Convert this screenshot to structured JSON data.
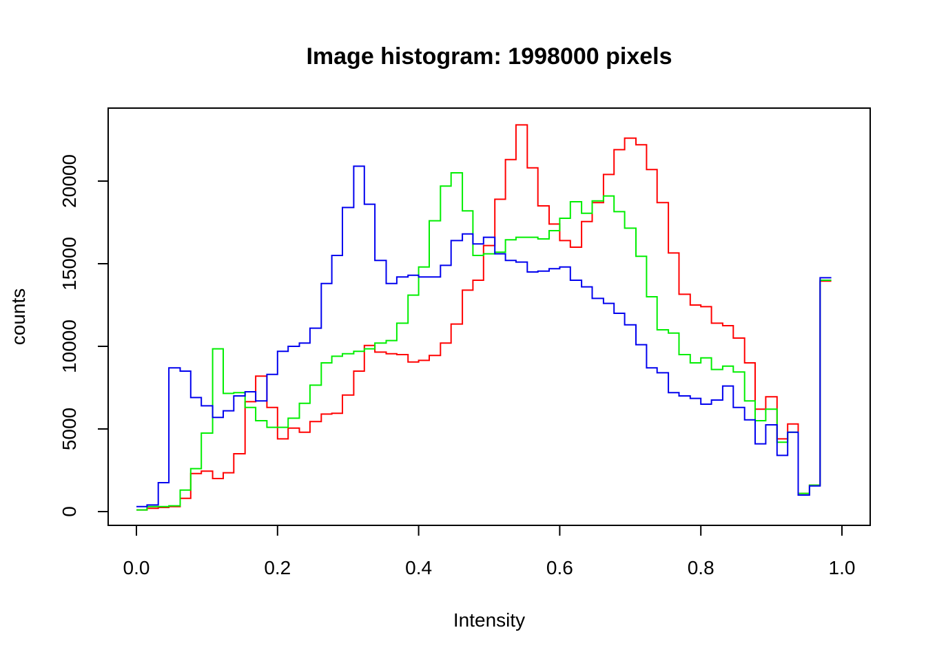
{
  "chart_data": {
    "type": "line",
    "title": "Image histogram: 1998000 pixels",
    "xlabel": "Intensity",
    "ylabel": "counts",
    "xlim": [
      0,
      1
    ],
    "ylim": [
      0,
      23500
    ],
    "grid": false,
    "legend": "none",
    "step": true,
    "x_ticks": [
      {
        "value": 0.0,
        "label": "0.0"
      },
      {
        "value": 0.2,
        "label": "0.2"
      },
      {
        "value": 0.4,
        "label": "0.4"
      },
      {
        "value": 0.6,
        "label": "0.6"
      },
      {
        "value": 0.8,
        "label": "0.8"
      },
      {
        "value": 1.0,
        "label": "1.0"
      }
    ],
    "y_ticks": [
      {
        "value": 0,
        "label": "0"
      },
      {
        "value": 5000,
        "label": "5000"
      },
      {
        "value": 10000,
        "label": "10000"
      },
      {
        "value": 15000,
        "label": "15000"
      },
      {
        "value": 20000,
        "label": "20000"
      }
    ],
    "bin_edges": [
      0,
      0.015,
      0.031,
      0.046,
      0.062,
      0.077,
      0.092,
      0.108,
      0.123,
      0.138,
      0.154,
      0.169,
      0.185,
      0.2,
      0.215,
      0.231,
      0.246,
      0.262,
      0.277,
      0.292,
      0.308,
      0.323,
      0.338,
      0.354,
      0.369,
      0.385,
      0.4,
      0.415,
      0.431,
      0.446,
      0.462,
      0.477,
      0.492,
      0.508,
      0.523,
      0.538,
      0.554,
      0.569,
      0.585,
      0.6,
      0.615,
      0.631,
      0.646,
      0.662,
      0.677,
      0.692,
      0.708,
      0.723,
      0.738,
      0.754,
      0.769,
      0.785,
      0.8,
      0.815,
      0.831,
      0.846,
      0.862,
      0.877,
      0.892,
      0.908,
      0.923,
      0.938,
      0.954,
      0.969,
      0.985,
      1.0
    ],
    "series": [
      {
        "color": "#ff0000",
        "values": [
          100,
          200,
          250,
          300,
          800,
          2300,
          2450,
          2000,
          2350,
          3500,
          6650,
          8200,
          6300,
          4400,
          5050,
          4800,
          5450,
          5900,
          5950,
          7050,
          8500,
          10050,
          9650,
          9550,
          9500,
          9050,
          9150,
          9450,
          10200,
          11350,
          13400,
          14000,
          16100,
          18900,
          21300,
          23400,
          20800,
          18500,
          17400,
          16400,
          16000,
          17550,
          18700,
          20400,
          21900,
          22600,
          22200,
          20700,
          18700,
          15650,
          13150,
          12500,
          12400,
          11400,
          11250,
          10500,
          9000,
          6200,
          6950,
          4400,
          5300,
          1100,
          1600,
          13950
        ]
      },
      {
        "color": "#00ee00",
        "values": [
          100,
          300,
          300,
          350,
          1300,
          2600,
          4750,
          9850,
          7150,
          7200,
          6300,
          5500,
          5100,
          5100,
          5650,
          6550,
          7650,
          9000,
          9400,
          9550,
          9700,
          9850,
          10200,
          10350,
          11400,
          13100,
          14800,
          17600,
          19700,
          20500,
          18200,
          15500,
          15600,
          15700,
          16450,
          16600,
          16600,
          16500,
          17000,
          17750,
          18750,
          18050,
          18800,
          19100,
          18150,
          17150,
          15450,
          13000,
          11000,
          10800,
          9500,
          9000,
          9300,
          8600,
          8800,
          8450,
          6700,
          5500,
          6200,
          4200,
          4800,
          1100,
          1600,
          14000
        ]
      },
      {
        "color": "#0000ee",
        "values": [
          300,
          400,
          1750,
          8700,
          8500,
          6900,
          6400,
          5700,
          6100,
          7000,
          7250,
          6700,
          8300,
          9700,
          10000,
          10200,
          11100,
          13800,
          15500,
          18400,
          20900,
          18600,
          15200,
          13800,
          14200,
          14300,
          14200,
          14200,
          14900,
          16400,
          16800,
          16200,
          16600,
          15600,
          15200,
          15100,
          14500,
          14550,
          14700,
          14800,
          14000,
          13600,
          12900,
          12600,
          12000,
          11300,
          10100,
          8700,
          8400,
          7200,
          7000,
          6850,
          6500,
          6750,
          7600,
          6300,
          5550,
          4100,
          5250,
          3400,
          4800,
          1000,
          1550,
          14150
        ]
      }
    ]
  }
}
